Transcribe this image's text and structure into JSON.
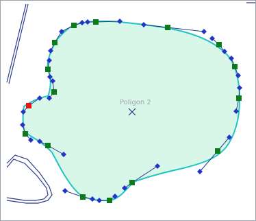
{
  "polygon": {
    "label": "Poligon 2",
    "fill_color": "#d9f7e8",
    "outline_color": "#20c4c4",
    "handle_line_color": "#2a3a8c",
    "vertex_color": "#2233c8",
    "anchor_color": "#0f7a1a",
    "selected_anchor_color": "#e01818",
    "center_marker_color": "#2a3a8c"
  },
  "background_shapes": {
    "line_color": "#2a3a8c"
  }
}
